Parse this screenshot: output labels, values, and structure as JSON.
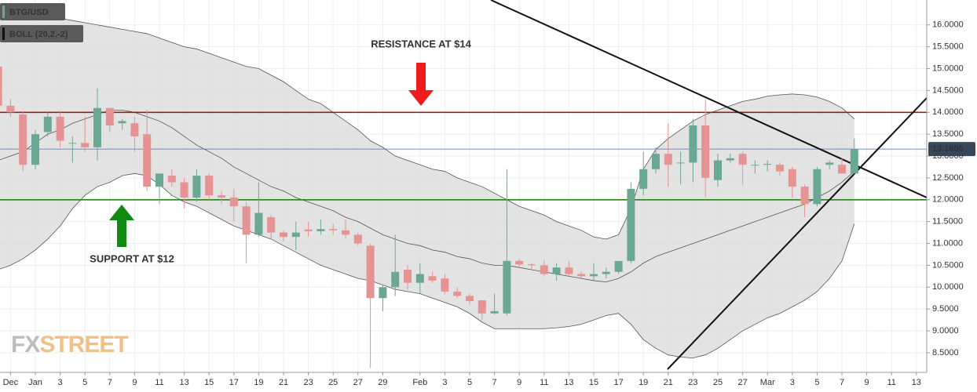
{
  "chart_data": {
    "type": "candlestick",
    "symbol": "BTG/USD",
    "indicator": "BOLL (20,2,-2)",
    "categories": [
      null,
      "Dec",
      null,
      "Jan",
      null,
      "3",
      null,
      "5",
      null,
      "7",
      null,
      "9",
      null,
      "11",
      null,
      "13",
      null,
      "15",
      null,
      "17",
      null,
      "19",
      null,
      "21",
      null,
      "23",
      null,
      "25",
      null,
      "27",
      null,
      "29",
      null,
      null,
      "Feb",
      null,
      "3",
      null,
      "5",
      null,
      "7",
      null,
      "9",
      null,
      "11",
      null,
      "13",
      null,
      "15",
      null,
      "17",
      null,
      "19",
      null,
      "21",
      null,
      "23",
      null,
      "25",
      null,
      "27",
      null,
      "Mar",
      null,
      "3",
      null,
      "5",
      null,
      "7",
      null,
      "9",
      null,
      "11",
      null,
      "13"
    ],
    "open": [
      15.05,
      14.15,
      13.95,
      12.8,
      13.55,
      13.9,
      13.3,
      13.3,
      13.2,
      14.1,
      13.75,
      13.75,
      13.5,
      12.3,
      12.55,
      12.4,
      12.05,
      12.55,
      12.1,
      12.05,
      11.85,
      11.2,
      11.6,
      11.25,
      11.15,
      11.32,
      11.28,
      11.33,
      11.3,
      11.2,
      10.95,
      9.75,
      10.0,
      10.4,
      10.1,
      10.25,
      10.2,
      9.9,
      9.8,
      9.7,
      9.4,
      9.4,
      10.6,
      10.52,
      10.5,
      10.3,
      10.45,
      10.3,
      10.25,
      10.3,
      10.35,
      10.6,
      12.25,
      12.7,
      13.05,
      12.85,
      12.85,
      13.7,
      12.45,
      12.9,
      13.05,
      12.8,
      12.8,
      12.8,
      12.7,
      12.3,
      11.9,
      12.8,
      12.8,
      12.6,
      null,
      null,
      null,
      null,
      null
    ],
    "high": [
      15.2,
      14.3,
      14.0,
      13.6,
      14.0,
      14.0,
      13.45,
      13.9,
      14.55,
      14.1,
      13.85,
      13.9,
      14.05,
      12.6,
      12.7,
      12.5,
      12.7,
      12.6,
      12.2,
      12.25,
      11.95,
      12.4,
      11.65,
      11.3,
      11.5,
      11.5,
      11.55,
      11.45,
      11.55,
      11.25,
      11.0,
      10.05,
      11.2,
      10.5,
      10.55,
      10.35,
      10.3,
      10.0,
      9.85,
      9.7,
      9.85,
      12.7,
      10.65,
      10.55,
      10.6,
      10.55,
      10.6,
      10.35,
      10.55,
      10.45,
      10.6,
      12.4,
      13.1,
      13.2,
      13.75,
      13.1,
      13.85,
      14.3,
      13.05,
      13.05,
      13.1,
      12.9,
      12.9,
      12.85,
      12.75,
      12.35,
      12.75,
      12.9,
      12.95,
      13.4,
      null,
      null,
      null,
      null,
      null
    ],
    "low": [
      14.1,
      13.9,
      12.65,
      12.7,
      13.45,
      13.2,
      12.85,
      13.1,
      12.9,
      13.55,
      13.6,
      13.1,
      12.2,
      11.9,
      12.3,
      11.8,
      11.95,
      12.0,
      11.9,
      11.5,
      10.55,
      11.15,
      11.1,
      11.05,
      10.85,
      11.15,
      11.2,
      11.2,
      11.1,
      10.95,
      8.15,
      9.45,
      9.8,
      9.95,
      9.85,
      10.1,
      9.85,
      9.75,
      9.6,
      9.25,
      9.38,
      9.35,
      10.45,
      10.4,
      10.25,
      10.15,
      10.25,
      10.2,
      10.15,
      10.2,
      10.3,
      10.55,
      12.1,
      12.6,
      12.3,
      12.35,
      12.4,
      12.05,
      12.3,
      12.85,
      12.35,
      12.6,
      12.65,
      12.55,
      12.05,
      11.6,
      11.85,
      12.7,
      12.6,
      12.6,
      null,
      null,
      null,
      null,
      null
    ],
    "close": [
      14.15,
      14.0,
      12.8,
      13.5,
      13.9,
      13.35,
      13.3,
      13.2,
      14.1,
      13.7,
      13.8,
      13.45,
      12.3,
      12.6,
      12.4,
      12.05,
      12.55,
      12.1,
      12.05,
      11.85,
      11.2,
      11.7,
      11.25,
      11.15,
      11.25,
      11.28,
      11.33,
      11.3,
      11.2,
      11.0,
      9.75,
      10.0,
      10.35,
      10.1,
      10.3,
      10.15,
      9.9,
      9.8,
      9.68,
      9.4,
      9.45,
      10.6,
      10.52,
      10.5,
      10.3,
      10.45,
      10.3,
      10.25,
      10.3,
      10.35,
      10.6,
      12.25,
      12.7,
      13.05,
      12.8,
      12.85,
      13.7,
      12.5,
      12.9,
      12.95,
      12.8,
      12.8,
      12.82,
      12.65,
      12.3,
      11.9,
      12.7,
      12.85,
      12.6,
      13.16,
      null,
      null,
      null,
      null,
      null
    ],
    "up_color": "#6aa893",
    "down_color": "#e59393",
    "bollinger": {
      "color": "#555555",
      "fill": "#d9d9d9",
      "upper": [
        16.25,
        16.25,
        16.25,
        16.22,
        16.2,
        16.15,
        16.1,
        16.05,
        16.0,
        15.95,
        15.9,
        15.85,
        15.8,
        15.7,
        15.6,
        15.5,
        15.45,
        15.35,
        15.25,
        15.15,
        15.05,
        15.0,
        14.85,
        14.7,
        14.5,
        14.3,
        14.2,
        14.0,
        13.8,
        13.6,
        13.35,
        13.2,
        13.0,
        12.9,
        12.8,
        12.7,
        12.65,
        12.5,
        12.4,
        12.3,
        12.15,
        12.0,
        11.85,
        11.75,
        11.65,
        11.5,
        11.4,
        11.3,
        11.15,
        11.1,
        11.2,
        11.8,
        12.7,
        13.15,
        13.4,
        13.6,
        13.8,
        13.95,
        14.05,
        14.15,
        14.25,
        14.3,
        14.37,
        14.4,
        14.42,
        14.4,
        14.35,
        14.25,
        14.1,
        13.85,
        null,
        null,
        null,
        null,
        null
      ],
      "middle": [
        12.9,
        13.0,
        13.1,
        13.3,
        13.5,
        13.6,
        13.75,
        13.85,
        13.95,
        14.05,
        14.05,
        14.0,
        13.9,
        13.8,
        13.65,
        13.45,
        13.25,
        13.1,
        12.95,
        12.75,
        12.6,
        12.45,
        12.3,
        12.2,
        12.05,
        11.95,
        11.85,
        11.75,
        11.6,
        11.5,
        11.35,
        11.2,
        11.1,
        11.0,
        10.95,
        10.85,
        10.8,
        10.7,
        10.65,
        10.55,
        10.5,
        10.5,
        10.45,
        10.4,
        10.35,
        10.3,
        10.25,
        10.2,
        10.15,
        10.12,
        10.2,
        10.35,
        10.55,
        10.7,
        10.8,
        10.9,
        11.0,
        11.1,
        11.2,
        11.3,
        11.4,
        11.5,
        11.6,
        11.7,
        11.8,
        11.9,
        12.05,
        12.2,
        12.4,
        12.65,
        null,
        null,
        null,
        null,
        null
      ],
      "lower": [
        10.4,
        10.5,
        10.65,
        10.85,
        11.1,
        11.4,
        11.8,
        12.1,
        12.3,
        12.4,
        12.55,
        12.6,
        12.55,
        12.35,
        12.1,
        11.95,
        11.85,
        11.7,
        11.55,
        11.4,
        11.3,
        11.2,
        11.1,
        10.95,
        10.8,
        10.65,
        10.5,
        10.4,
        10.3,
        10.2,
        10.15,
        10.05,
        9.95,
        9.9,
        9.85,
        9.75,
        9.65,
        9.55,
        9.4,
        9.2,
        9.05,
        9.05,
        9.05,
        9.05,
        9.05,
        9.07,
        9.1,
        9.15,
        9.25,
        9.35,
        9.4,
        9.15,
        8.8,
        8.6,
        8.45,
        8.4,
        8.38,
        8.45,
        8.6,
        8.8,
        9.0,
        9.15,
        9.3,
        9.4,
        9.55,
        9.7,
        9.9,
        10.2,
        10.6,
        11.45,
        null,
        null,
        null,
        null,
        null
      ]
    },
    "levels": [
      {
        "value": 14,
        "color": "#9b1c1c"
      },
      {
        "value": 12,
        "color": "#2e7d1f"
      }
    ],
    "last_price": {
      "value": 13.16,
      "label": "13.1600",
      "color": "#4b6c9b"
    },
    "annotations": [
      "RESISTANCE AT $14",
      "SUPPORT AT $12"
    ],
    "watermark": [
      "FX",
      "STREET"
    ],
    "ylim": [
      8.05,
      16.57
    ],
    "yticks": [
      {
        "value": 8.5,
        "label": "8.5000"
      },
      {
        "value": 9,
        "label": "9.0000"
      },
      {
        "value": 9.5,
        "label": "9.5000"
      },
      {
        "value": 10,
        "label": "10.0000"
      },
      {
        "value": 10.5,
        "label": "10.5000"
      },
      {
        "value": 11,
        "label": "11.0000"
      },
      {
        "value": 11.5,
        "label": "11.5000"
      },
      {
        "value": 12,
        "label": "12.0000"
      },
      {
        "value": 12.5,
        "label": "12.5000"
      },
      {
        "value": 13,
        "label": "13.0000"
      },
      {
        "value": 13.5,
        "label": "13.5000"
      },
      {
        "value": 14,
        "label": "14.0000"
      },
      {
        "value": 14.5,
        "label": "14.5000"
      },
      {
        "value": 15,
        "label": "15.0000"
      },
      {
        "value": 15.5,
        "label": "15.5000"
      },
      {
        "value": 16,
        "label": "16.0000"
      }
    ],
    "grid": true
  }
}
